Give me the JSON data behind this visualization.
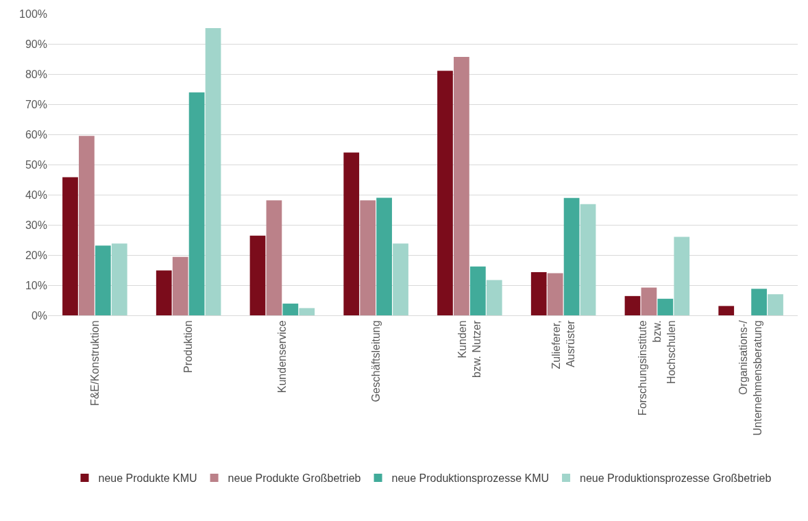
{
  "chart_data": {
    "type": "bar",
    "categories": [
      "F&E/Konstruktion",
      "Produktion",
      "Kundenservice",
      "Geschäftsleitung",
      "Kunden\nbzw. Nutzer",
      "Zulieferer,\nAusrüster",
      "Forschungsinstitute\nbzw.\nHochschulen",
      "Organisations-/\nUnternehmensberatung"
    ],
    "series": [
      {
        "name": "neue Produkte KMU",
        "color": "#7b0c1b",
        "values": [
          45.8,
          14.9,
          26.4,
          54.0,
          81.1,
          14.3,
          6.4,
          3.1
        ]
      },
      {
        "name": "neue Produkte Großbetrieb",
        "color": "#bb8189",
        "values": [
          59.5,
          19.4,
          38.1,
          38.1,
          85.7,
          14.0,
          9.2,
          null
        ]
      },
      {
        "name": "neue Produktionsprozesse KMU",
        "color": "#41ab9a",
        "values": [
          23.1,
          73.9,
          3.9,
          39.0,
          16.2,
          38.9,
          5.5,
          8.8
        ]
      },
      {
        "name": "neue Produktionsprozesse Großbetrieb",
        "color": "#a1d5cb",
        "values": [
          23.8,
          95.2,
          2.4,
          23.8,
          11.7,
          36.9,
          26.0,
          7.0
        ]
      }
    ],
    "ylim": [
      0,
      100
    ],
    "yticks": [
      {
        "value": 0,
        "label": "0%"
      },
      {
        "value": 10,
        "label": "10%"
      },
      {
        "value": 20,
        "label": "20%"
      },
      {
        "value": 30,
        "label": "30%"
      },
      {
        "value": 40,
        "label": "40%"
      },
      {
        "value": 50,
        "label": "50%"
      },
      {
        "value": 60,
        "label": "60%"
      },
      {
        "value": 70,
        "label": "70%"
      },
      {
        "value": 80,
        "label": "80%"
      },
      {
        "value": 90,
        "label": "90%"
      },
      {
        "value": 100,
        "label": "100%"
      }
    ],
    "grid": "y",
    "legend": "bottom"
  }
}
